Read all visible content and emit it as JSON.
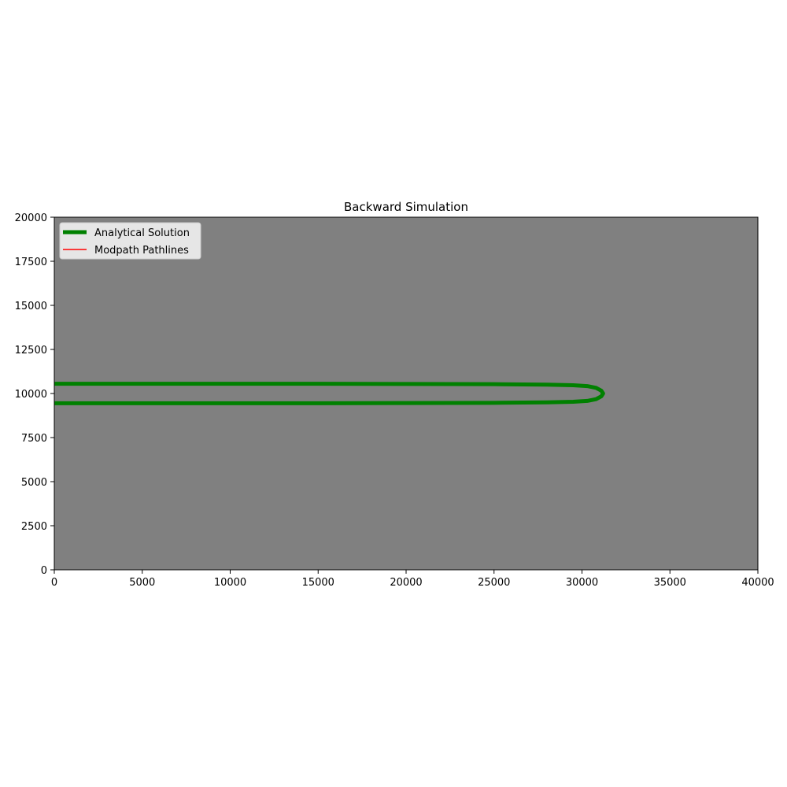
{
  "chart_data": {
    "type": "line",
    "title": "Backward Simulation",
    "xlabel": "",
    "ylabel": "",
    "xlim": [
      0,
      40000
    ],
    "ylim": [
      0,
      20000
    ],
    "xticks": [
      0,
      5000,
      10000,
      15000,
      20000,
      25000,
      30000,
      35000,
      40000
    ],
    "yticks": [
      0,
      2500,
      5000,
      7500,
      10000,
      12500,
      15000,
      17500,
      20000
    ],
    "grid": false,
    "background_color": "#808080",
    "legend": {
      "placement": "top-left"
    },
    "series": [
      {
        "name": "Analytical Solution",
        "color": "#008000",
        "style": "thick-line",
        "x": [
          0,
          5000,
          10000,
          15000,
          20000,
          25000,
          28000,
          29500,
          30300,
          30800,
          31100,
          31200,
          31100,
          30800,
          30300,
          29500,
          28000,
          25000,
          20000,
          15000,
          10000,
          5000,
          0
        ],
        "y": [
          10550,
          10550,
          10550,
          10550,
          10540,
          10530,
          10500,
          10470,
          10420,
          10320,
          10160,
          10000,
          9840,
          9680,
          9580,
          9530,
          9500,
          9470,
          9460,
          9450,
          9450,
          9450,
          9450
        ]
      },
      {
        "name": "Modpath Pathlines",
        "color": "#ff0000",
        "style": "line",
        "x": [],
        "y": []
      }
    ]
  }
}
